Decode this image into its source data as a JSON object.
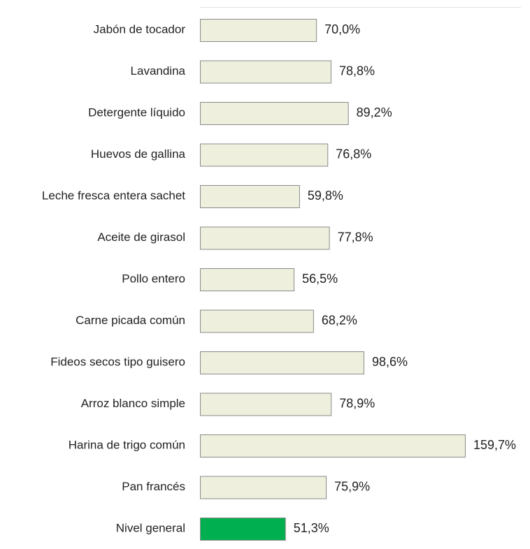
{
  "chart_data": {
    "type": "barh",
    "categories": [
      "Jabón de tocador",
      "Lavandina",
      "Detergente líquido",
      "Huevos de gallina",
      "Leche fresca entera sachet",
      "Aceite de girasol",
      "Pollo entero",
      "Carne picada común",
      "Fideos secos tipo guisero",
      "Arroz blanco simple",
      "Harina de trigo común",
      "Pan francés",
      "Nivel general"
    ],
    "values": [
      70.0,
      78.8,
      89.2,
      76.8,
      59.8,
      77.8,
      56.5,
      68.2,
      98.6,
      78.9,
      159.7,
      75.9,
      51.3
    ],
    "value_labels": [
      "70,0%",
      "78,8%",
      "89,2%",
      "76,8%",
      "59,8%",
      "77,8%",
      "56,5%",
      "68,2%",
      "98,6%",
      "78,9%",
      "159,7%",
      "75,9%",
      "51,3%"
    ],
    "colors": [
      "#eef0dd",
      "#eef0dd",
      "#eef0dd",
      "#eef0dd",
      "#eef0dd",
      "#eef0dd",
      "#eef0dd",
      "#eef0dd",
      "#eef0dd",
      "#eef0dd",
      "#eef0dd",
      "#eef0dd",
      "#00b050"
    ]
  }
}
